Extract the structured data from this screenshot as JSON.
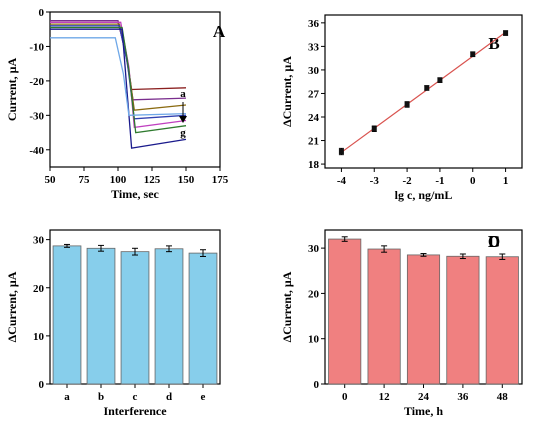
{
  "chart_data": [
    {
      "panel": "A",
      "type": "line",
      "xlabel": "Time, sec",
      "ylabel": "Current, μA",
      "xlim": [
        50,
        175
      ],
      "ylim": [
        -45,
        0
      ],
      "xticks": [
        50,
        75,
        100,
        125,
        150,
        175
      ],
      "yticks": [
        0,
        -10,
        -20,
        -30,
        -40
      ],
      "annotations": [
        "a",
        "g"
      ],
      "series": [
        {
          "color": "#8B2020",
          "x": [
            50,
            100,
            106,
            110,
            150
          ],
          "y": [
            -3.0,
            -3.0,
            -12,
            -22.5,
            -22.0
          ]
        },
        {
          "color": "#7A2E8E",
          "x": [
            50,
            100,
            106,
            111,
            150
          ],
          "y": [
            -2.5,
            -2.5,
            -13,
            -25.5,
            -25.0
          ]
        },
        {
          "color": "#8A6A10",
          "x": [
            50,
            101,
            107,
            112,
            150
          ],
          "y": [
            -3.5,
            -3.5,
            -14,
            -28.5,
            -27.0
          ]
        },
        {
          "color": "#3040B0",
          "x": [
            50,
            101,
            107,
            112,
            150
          ],
          "y": [
            -4.0,
            -4.0,
            -15,
            -31.0,
            -30.0
          ]
        },
        {
          "color": "#C040C0",
          "x": [
            50,
            102,
            108,
            112,
            150
          ],
          "y": [
            -3.0,
            -3.0,
            -16,
            -33.5,
            -31.5
          ]
        },
        {
          "color": "#2E7A2E",
          "x": [
            50,
            103,
            108,
            113,
            150
          ],
          "y": [
            -4.5,
            -4.5,
            -17,
            -35.0,
            -33.0
          ]
        },
        {
          "color": "#1A1A8C",
          "x": [
            50,
            103,
            106,
            110,
            150
          ],
          "y": [
            -5.0,
            -5.0,
            -20,
            -39.5,
            -37.0
          ]
        },
        {
          "color": "#6FA8E8",
          "x": [
            50,
            98,
            104,
            108,
            150
          ],
          "y": [
            -7.5,
            -7.5,
            -18,
            -30.0,
            -29.5
          ]
        }
      ]
    },
    {
      "panel": "B",
      "type": "scatter",
      "xlabel": "lg c, ng/mL",
      "ylabel": "ΔCurrent, μA",
      "xlim": [
        -4.5,
        1.5
      ],
      "ylim": [
        17.5,
        37
      ],
      "xticks": [
        -4,
        -3,
        -2,
        -1,
        0,
        1
      ],
      "yticks": [
        18,
        21,
        24,
        27,
        30,
        33,
        36
      ],
      "x": [
        -4,
        -3,
        -2,
        -1.4,
        -1,
        0,
        1
      ],
      "y": [
        19.6,
        22.5,
        25.6,
        27.7,
        28.7,
        32.0,
        34.7
      ],
      "err": [
        0.4,
        0.35,
        0.35,
        0.3,
        0.3,
        0.3,
        0.3
      ],
      "fit": {
        "x": [
          -4,
          1
        ],
        "y": [
          19.5,
          34.8
        ]
      }
    },
    {
      "panel": "C",
      "type": "bar",
      "xlabel": "Interference",
      "ylabel": "ΔCurrent, μA",
      "ylim": [
        0,
        32
      ],
      "yticks": [
        0,
        10,
        20,
        30
      ],
      "categories": [
        "a",
        "b",
        "c",
        "d",
        "e"
      ],
      "values": [
        28.7,
        28.2,
        27.5,
        28.1,
        27.2
      ],
      "err": [
        0.3,
        0.6,
        0.7,
        0.6,
        0.7
      ],
      "color": "#87CEEB"
    },
    {
      "panel": "D",
      "type": "bar",
      "xlabel": "Time, h",
      "ylabel": "ΔCurrent, μA",
      "ylim": [
        0,
        34
      ],
      "yticks": [
        0,
        10,
        20,
        30
      ],
      "categories": [
        "0",
        "12",
        "24",
        "36",
        "48"
      ],
      "values": [
        32.0,
        29.8,
        28.5,
        28.2,
        28.1
      ],
      "err": [
        0.5,
        0.7,
        0.3,
        0.5,
        0.6
      ],
      "color": "#F08080"
    }
  ]
}
